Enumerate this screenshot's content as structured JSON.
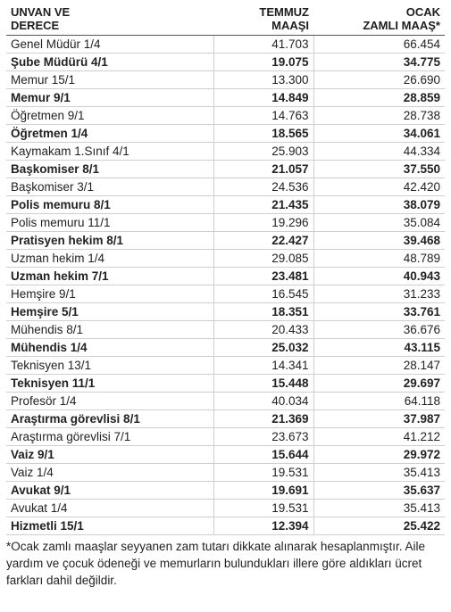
{
  "table": {
    "headers": [
      "UNVAN VE\nDERECE",
      "TEMMUZ\nMAAŞI",
      "OCAK\nZAMLI MAAŞ*"
    ],
    "rows": [
      [
        "Genel Müdür 1/4",
        "41.703",
        "66.454"
      ],
      [
        "Şube Müdürü 4/1",
        "19.075",
        "34.775"
      ],
      [
        "Memur 15/1",
        "13.300",
        "26.690"
      ],
      [
        "Memur 9/1",
        "14.849",
        "28.859"
      ],
      [
        "Öğretmen 9/1",
        "14.763",
        "28.738"
      ],
      [
        "Öğretmen 1/4",
        "18.565",
        "34.061"
      ],
      [
        "Kaymakam 1.Sınıf 4/1",
        "25.903",
        "44.334"
      ],
      [
        "Başkomiser 8/1",
        "21.057",
        "37.550"
      ],
      [
        "Başkomiser 3/1",
        "24.536",
        "42.420"
      ],
      [
        "Polis memuru 8/1",
        "21.435",
        "38.079"
      ],
      [
        "Polis memuru 11/1",
        "19.296",
        "35.084"
      ],
      [
        "Pratisyen hekim 8/1",
        "22.427",
        "39.468"
      ],
      [
        "Uzman hekim 1/4",
        "29.085",
        "48.789"
      ],
      [
        "Uzman hekim 7/1",
        "23.481",
        "40.943"
      ],
      [
        "Hemşire 9/1",
        "16.545",
        "31.233"
      ],
      [
        "Hemşire 5/1",
        "18.351",
        "33.761"
      ],
      [
        "Mühendis 8/1",
        "20.433",
        "36.676"
      ],
      [
        "Mühendis 1/4",
        "25.032",
        "43.115"
      ],
      [
        "Teknisyen 13/1",
        "14.341",
        "28.147"
      ],
      [
        "Teknisyen 11/1",
        "15.448",
        "29.697"
      ],
      [
        "Profesör 1/4",
        "40.034",
        "64.118"
      ],
      [
        "Araştırma görevlisi 8/1",
        "21.369",
        "37.987"
      ],
      [
        "Araştırma görevlisi 7/1",
        "23.673",
        "41.212"
      ],
      [
        "Vaiz 9/1",
        "15.644",
        "29.972"
      ],
      [
        "Vaiz 1/4",
        "19.531",
        "35.413"
      ],
      [
        "Avukat 9/1",
        "19.691",
        "35.637"
      ],
      [
        "Avukat 1/4",
        "19.531",
        "35.413"
      ],
      [
        "Hizmetli 15/1",
        "12.394",
        "25.422"
      ]
    ]
  },
  "footnote": "*Ocak zamlı maaşlar seyyanen zam tutarı dikkate alınarak hesaplanmıştır. Aile yardım ve çocuk ödeneği ve memurların bulundukları illere göre aldıkları ücret farkları dahil değildir."
}
